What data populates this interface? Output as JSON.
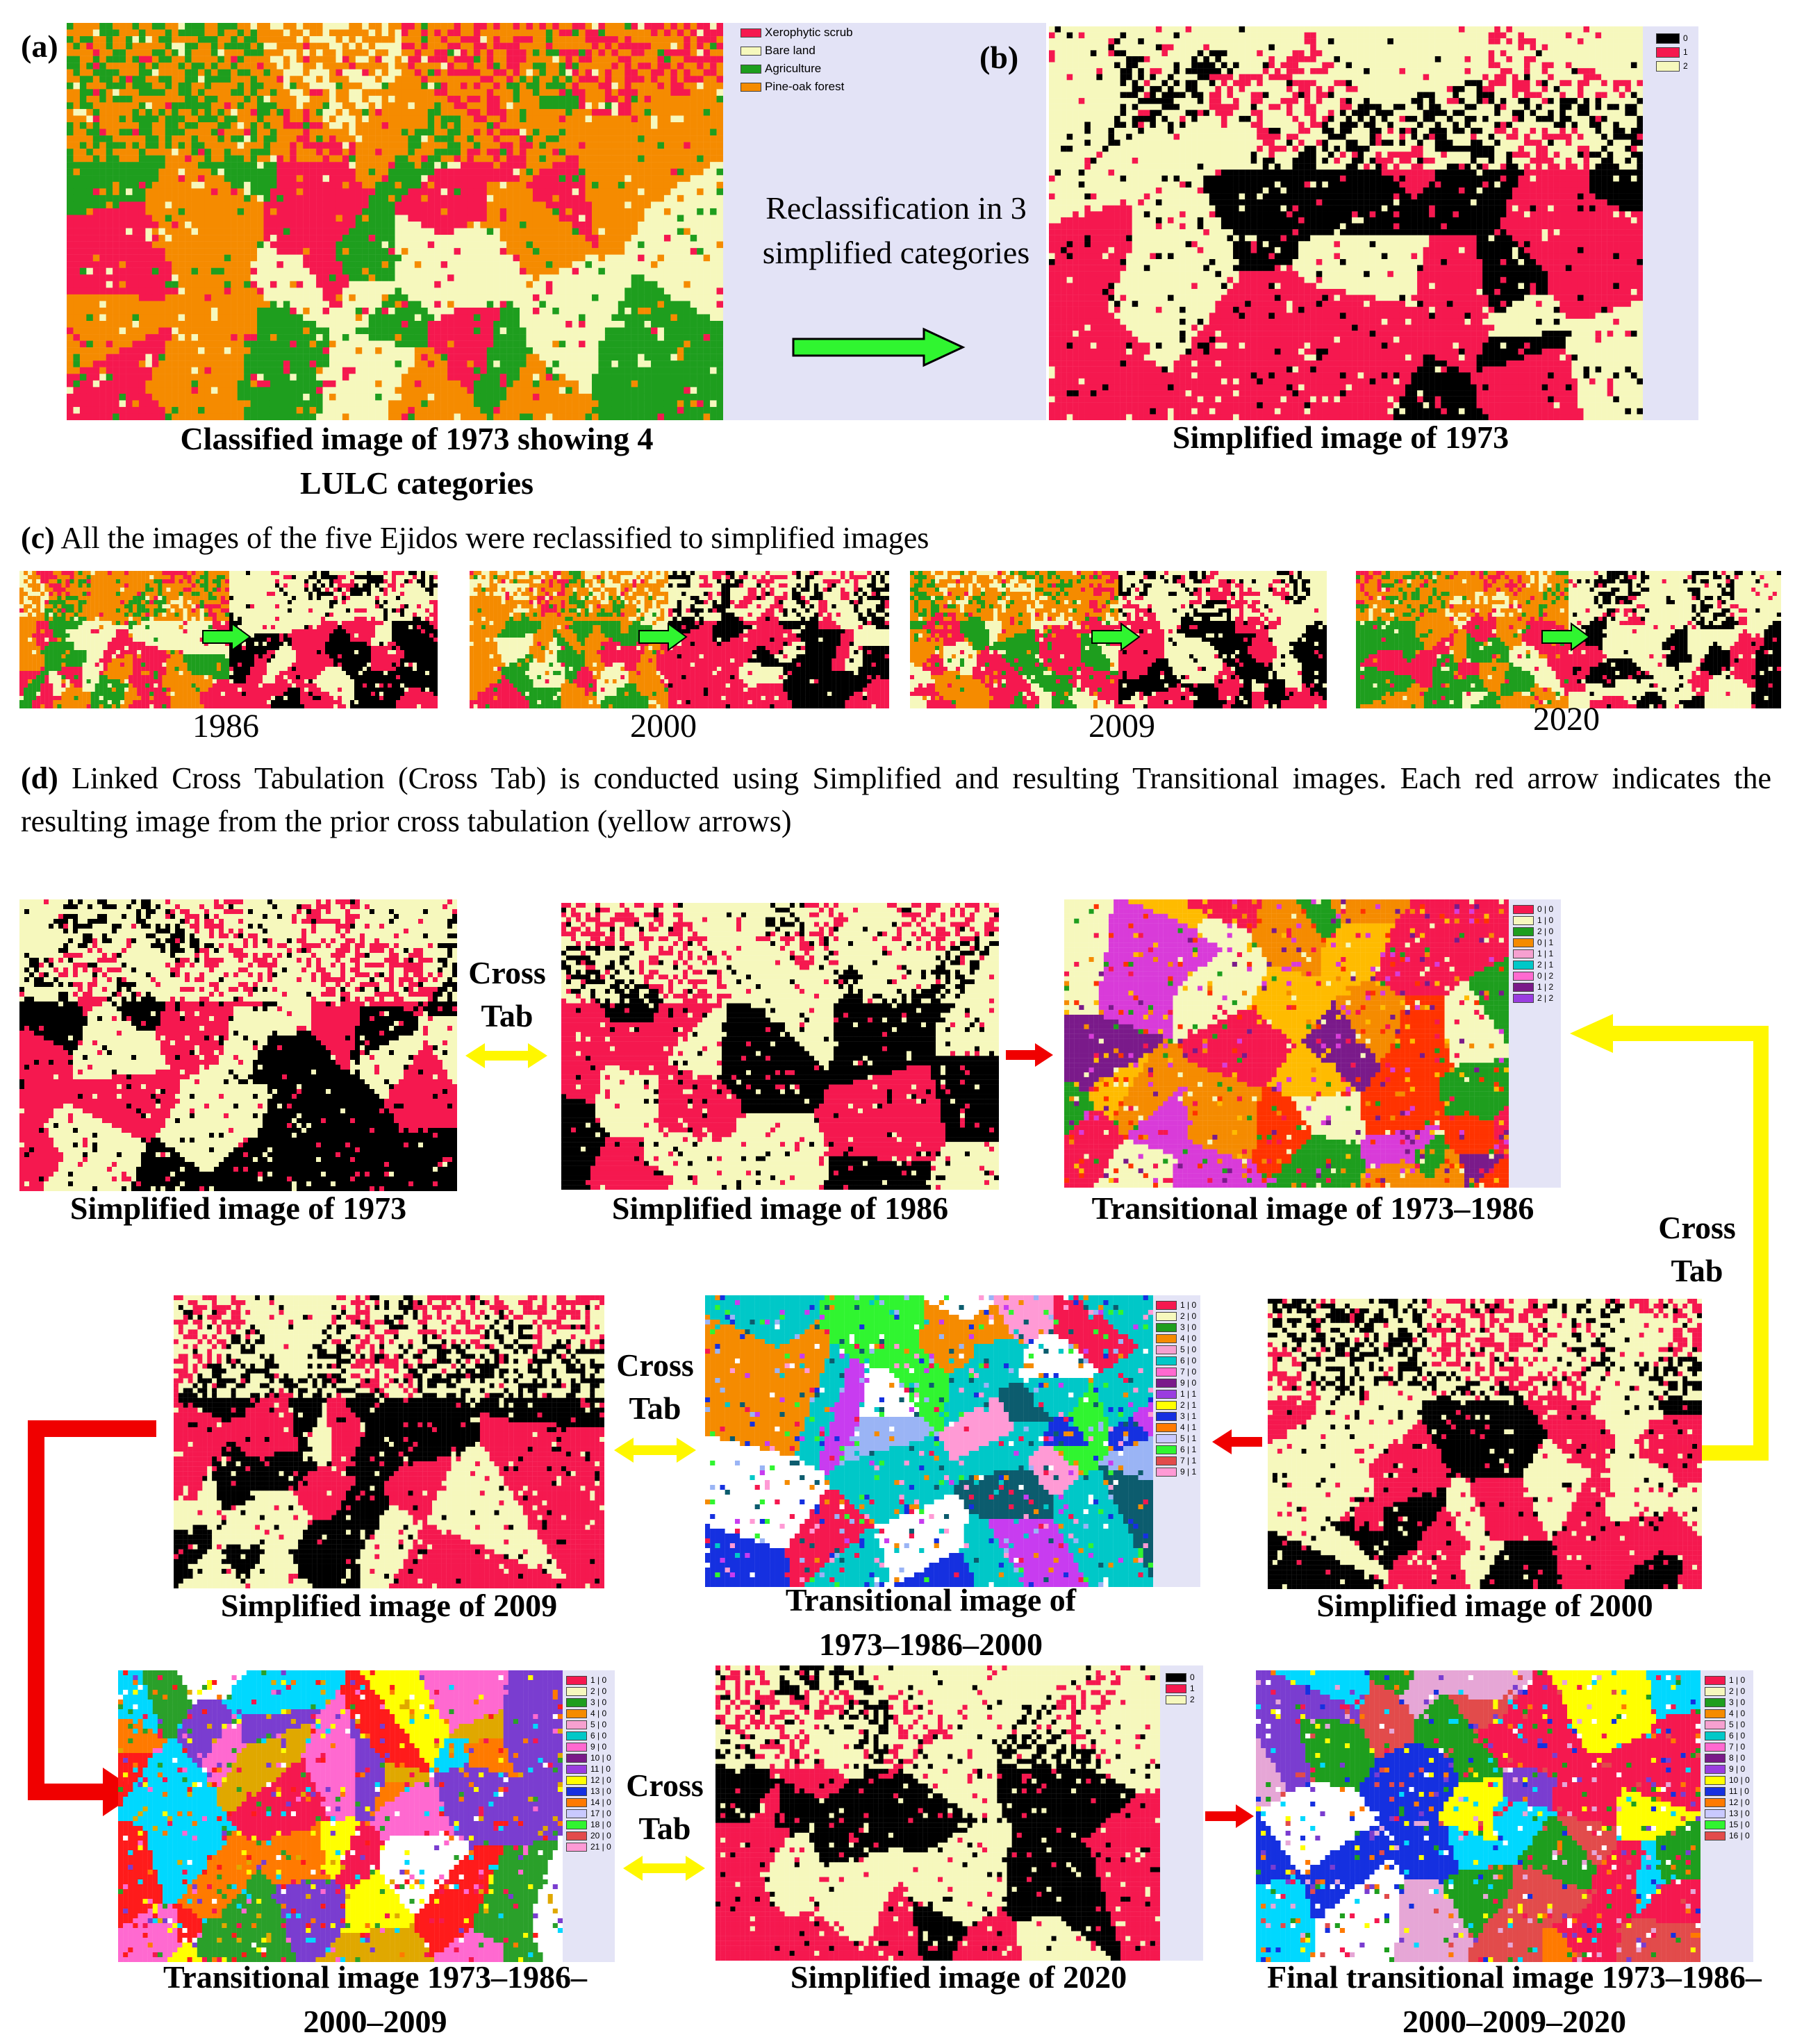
{
  "colors": {
    "red": "#f5184f",
    "black": "#000000",
    "cream": "#f6f8bd",
    "green": "#1e9e1e",
    "orange": "#f58b00",
    "arrow_green": "#30f530",
    "arrow_yellow": "#fff700",
    "arrow_red": "#f00000"
  },
  "panel_a": {
    "letter": "(a)",
    "legend": [
      "Xerophytic scrub",
      "Bare land",
      "Agriculture",
      "Pine-oak forest"
    ],
    "caption": "Classified image of 1973 showing 4 LULC categories",
    "arrow_text": "Reclassification in 3 simplified categories"
  },
  "panel_b": {
    "letter": "(b)",
    "legend": [
      "0",
      "1",
      "2"
    ],
    "caption": "Simplified image of 1973"
  },
  "panel_c": {
    "letter": "(c)",
    "text": "All the images of the five Ejidos were reclassified to simplified images",
    "years": [
      "1986",
      "2000",
      "2009",
      "2020"
    ]
  },
  "panel_d": {
    "letter": "(d)",
    "text": "Linked Cross Tabulation (Cross Tab) is conducted using Simplified and resulting Transitional images. Each red arrow indicates the resulting image from the prior cross tabulation (yellow arrows)",
    "cross_tab": "Cross Tab",
    "captions": {
      "s1973": "Simplified image of 1973",
      "s1986": "Simplified image of 1986",
      "t1973_1986": "Transitional image of 1973–1986",
      "s2009": "Simplified image of 2009",
      "t1973_2000": "Transitional image of 1973–1986–2000",
      "s2000": "Simplified image of 2000",
      "t1973_2009": "Transitional image 1973–1986–2000–2009",
      "s2020": "Simplified image of 2020",
      "final": "Final transitional image 1973–1986–2000–2009–2020"
    },
    "legend_t1": [
      "0 | 0",
      "1 | 0",
      "2 | 0",
      "0 | 1",
      "1 | 1",
      "2 | 1",
      "0 | 2",
      "1 | 2",
      "2 | 2"
    ],
    "legend_t2": [
      "1 | 0",
      "2 | 0",
      "3 | 0",
      "4 | 0",
      "5 | 0",
      "6 | 0",
      "7 | 0",
      "9 | 0",
      "1 | 1",
      "2 | 1",
      "3 | 1",
      "4 | 1",
      "5 | 1",
      "6 | 1",
      "7 | 1",
      "9 | 1"
    ],
    "legend_t3": [
      "1 | 0",
      "2 | 0",
      "3 | 0",
      "4 | 0",
      "5 | 0",
      "6 | 0",
      "9 | 0",
      "10 | 0",
      "11 | 0",
      "12 | 0",
      "13 | 0",
      "14 | 0",
      "17 | 0",
      "18 | 0",
      "20 | 0",
      "21 | 0"
    ],
    "legend_s2020": [
      "0",
      "1",
      "2"
    ],
    "legend_final": [
      "1 | 0",
      "2 | 0",
      "3 | 0",
      "4 | 0",
      "5 | 0",
      "6 | 0",
      "7 | 0",
      "8 | 0",
      "9 | 0",
      "10 | 0",
      "11 | 0",
      "12 | 0",
      "13 | 0",
      "15 | 0",
      "16 | 0"
    ]
  }
}
